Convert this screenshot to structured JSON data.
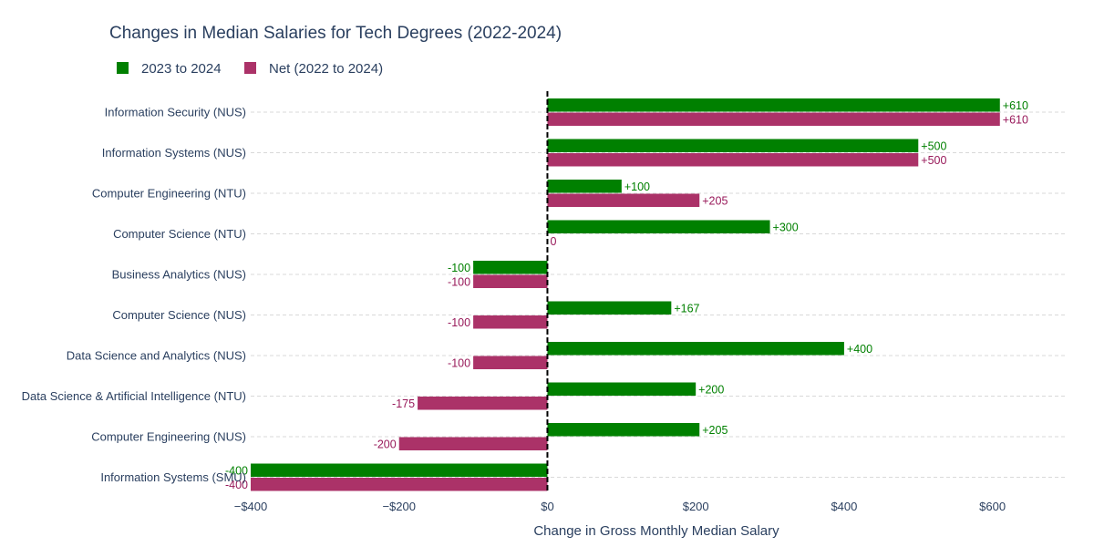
{
  "chart_data": {
    "type": "bar",
    "orientation": "horizontal",
    "title": "Changes in Median Salaries for Tech Degrees (2022-2024)",
    "xlabel": "Change in Gross Monthly Median Salary",
    "ylabel": "",
    "xlim": [
      -400,
      700
    ],
    "x_ticks": [
      {
        "value": -400,
        "label": "−$400"
      },
      {
        "value": -200,
        "label": "−$200"
      },
      {
        "value": 0,
        "label": "$0"
      },
      {
        "value": 200,
        "label": "$200"
      },
      {
        "value": 400,
        "label": "$400"
      },
      {
        "value": 600,
        "label": "$600"
      }
    ],
    "grid": "horizontal dashed",
    "zero_line": "dashed",
    "legend_position": "top-left",
    "categories": [
      "Information Security (NUS)",
      "Information Systems (NUS)",
      "Computer Engineering (NTU)",
      "Computer Science (NTU)",
      "Business Analytics (NUS)",
      "Computer Science (NUS)",
      "Data Science and Analytics (NUS)",
      "Data Science & Artificial Intelligence (NTU)",
      "Computer Engineering (NUS)",
      "Information Systems (SMU)"
    ],
    "series": [
      {
        "name": "2023 to 2024",
        "color": "#008000",
        "label_color": "#008000",
        "values": [
          610,
          500,
          100,
          300,
          -100,
          167,
          400,
          200,
          205,
          -400
        ],
        "labels": [
          "+610",
          "+500",
          "+100",
          "+300",
          "-100",
          "+167",
          "+400",
          "+200",
          "+205",
          "-400"
        ]
      },
      {
        "name": "Net (2022 to 2024)",
        "color": "#ab3268",
        "label_color": "#98195a",
        "values": [
          610,
          500,
          205,
          0,
          -100,
          -100,
          -100,
          -175,
          -200,
          -400
        ],
        "labels": [
          "+610",
          "+500",
          "+205",
          "0",
          "-100",
          "-100",
          "-100",
          "-175",
          "-200",
          "-400"
        ]
      }
    ]
  }
}
